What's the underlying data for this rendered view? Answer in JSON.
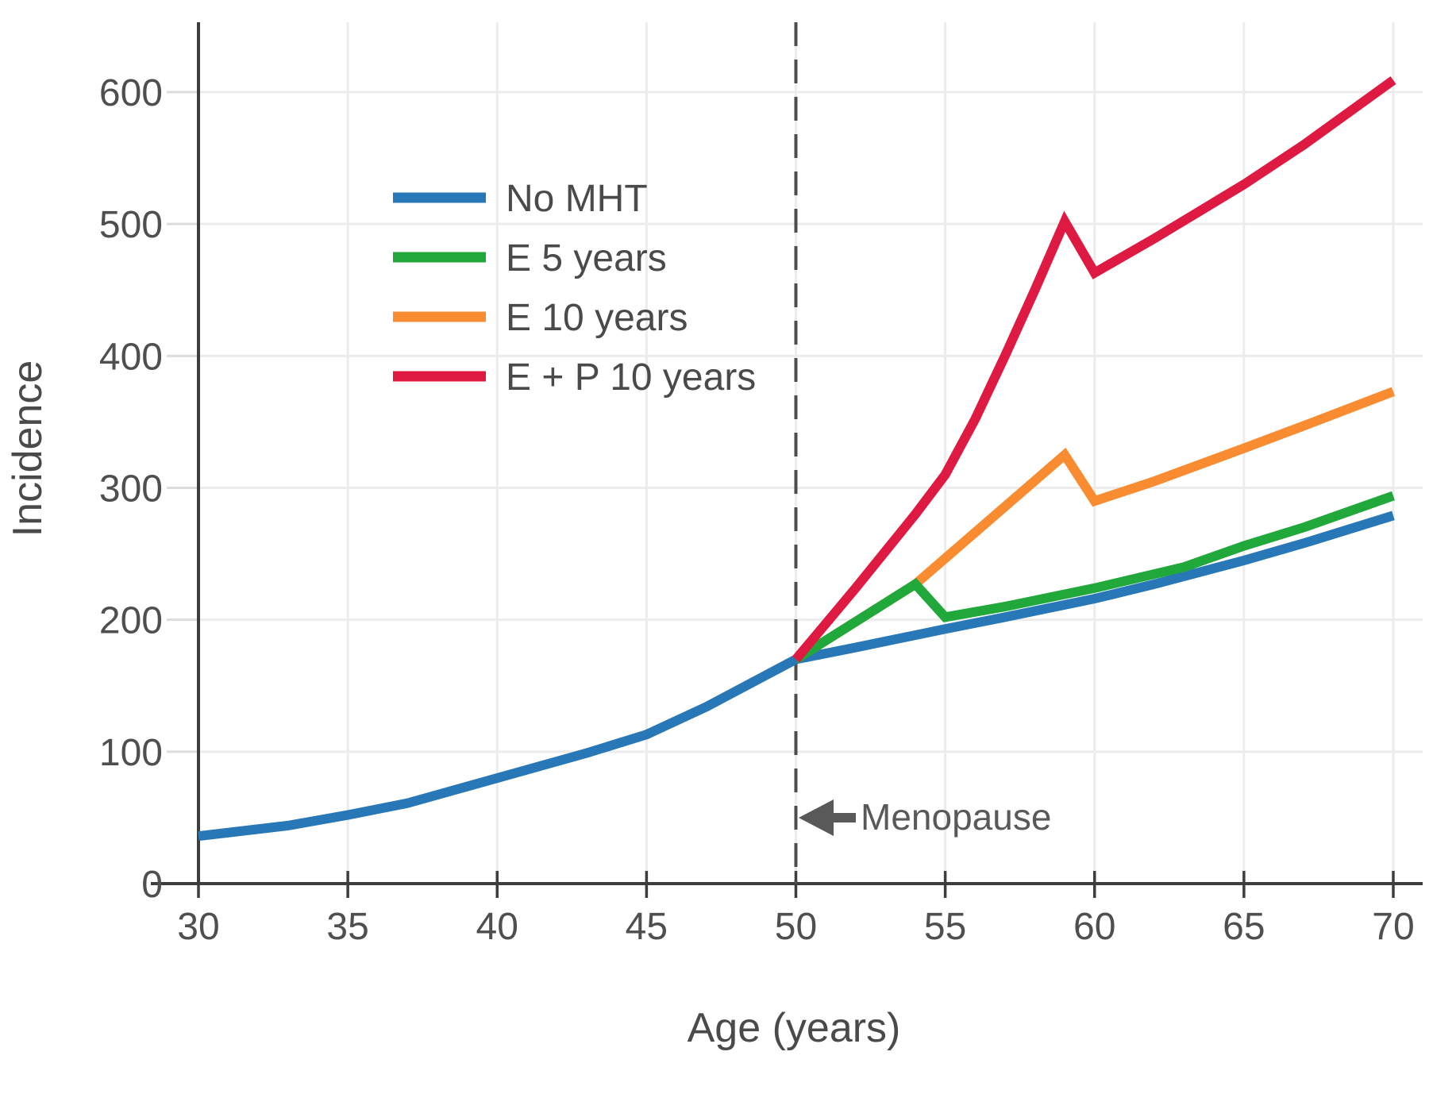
{
  "chart_data": {
    "type": "line",
    "title": "",
    "xlabel": "Age (years)",
    "ylabel": "Incidence",
    "xlim": [
      28.5,
      71
    ],
    "ylim": [
      0,
      650
    ],
    "x_ticks": [
      30,
      35,
      40,
      45,
      50,
      55,
      60,
      65,
      70
    ],
    "y_ticks": [
      0,
      100,
      200,
      300,
      400,
      500,
      600
    ],
    "grid": true,
    "legend_position": "upper-left-inside",
    "menopause_marker": {
      "age": 50,
      "label": "Menopause",
      "style": "dashed-vertical-line",
      "arrow": "left"
    },
    "series": [
      {
        "name": "No MHT",
        "color": "#2878b8",
        "points": [
          [
            30,
            36
          ],
          [
            33,
            44
          ],
          [
            35,
            52
          ],
          [
            37,
            61
          ],
          [
            40,
            80
          ],
          [
            43,
            99
          ],
          [
            45,
            113
          ],
          [
            47,
            134
          ],
          [
            49,
            158
          ],
          [
            50,
            170
          ],
          [
            52,
            179
          ],
          [
            55,
            193
          ],
          [
            57,
            202
          ],
          [
            60,
            216
          ],
          [
            62,
            227
          ],
          [
            65,
            245
          ],
          [
            67,
            258
          ],
          [
            70,
            279
          ]
        ]
      },
      {
        "name": "E 5 years",
        "color": "#20a83a",
        "points": [
          [
            50,
            170
          ],
          [
            54,
            227
          ],
          [
            55,
            202
          ],
          [
            57,
            210
          ],
          [
            60,
            224
          ],
          [
            63,
            240
          ],
          [
            65,
            256
          ],
          [
            67,
            270
          ],
          [
            70,
            294
          ]
        ]
      },
      {
        "name": "E 10 years",
        "color": "#f98b30",
        "points": [
          [
            50,
            170
          ],
          [
            54,
            227
          ],
          [
            59,
            325
          ],
          [
            60,
            290
          ],
          [
            62,
            305
          ],
          [
            65,
            330
          ],
          [
            67,
            347
          ],
          [
            70,
            373
          ]
        ]
      },
      {
        "name": "E + P 10 years",
        "color": "#df1a42",
        "points": [
          [
            50,
            170
          ],
          [
            52,
            224
          ],
          [
            54,
            280
          ],
          [
            55,
            310
          ],
          [
            56,
            352
          ],
          [
            57,
            400
          ],
          [
            58,
            450
          ],
          [
            59,
            502
          ],
          [
            60,
            463
          ],
          [
            62,
            489
          ],
          [
            65,
            530
          ],
          [
            67,
            560
          ],
          [
            70,
            609
          ]
        ]
      }
    ],
    "draw_order": [
      "No MHT",
      "E 10 years",
      "E 5 years",
      "E + P 10 years"
    ],
    "legend_entries": [
      "No MHT",
      "E 5 years",
      "E 10 years",
      "E + P 10 years"
    ]
  },
  "style": {
    "axis_color": "#3d3d3d",
    "grid_color": "#ececec",
    "y_tick_color": "#dcdcdc",
    "tick_label_color": "#4f4f4f",
    "text_color": "#4a4a4a",
    "annotation_color": "#595959",
    "dashed_line_color": "#4d4d4d",
    "background": "#ffffff"
  }
}
